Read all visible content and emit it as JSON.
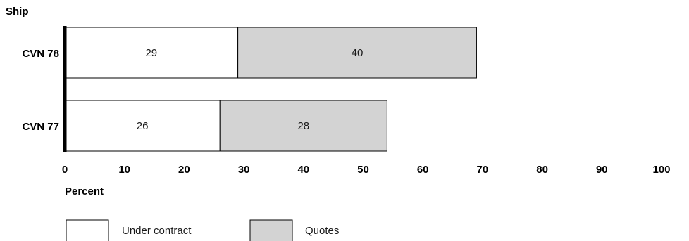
{
  "colors": {
    "under_contract": "#ffffff",
    "quotes": "#d3d3d3",
    "outline": "#000000"
  },
  "chart_data": {
    "type": "bar",
    "orientation": "horizontal",
    "stacked": true,
    "title": "",
    "xlabel": "Percent",
    "ylabel": "Ship",
    "xlim": [
      0,
      100
    ],
    "xticks": [
      0,
      10,
      20,
      30,
      40,
      50,
      60,
      70,
      80,
      90,
      100
    ],
    "categories": [
      "CVN 78",
      "CVN 77"
    ],
    "series": [
      {
        "name": "Under contract",
        "values": [
          29,
          26
        ]
      },
      {
        "name": "Quotes",
        "values": [
          40,
          28
        ]
      }
    ],
    "grid": false,
    "legend_position": "bottom"
  }
}
